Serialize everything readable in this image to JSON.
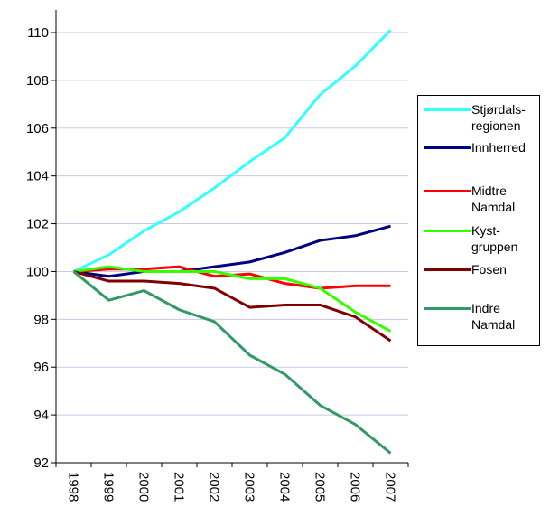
{
  "chart_data": {
    "type": "line",
    "categories": [
      "1998",
      "1999",
      "2000",
      "2001",
      "2002",
      "2003",
      "2004",
      "2005",
      "2006",
      "2007"
    ],
    "series": [
      {
        "name": "Stjørdals-regionen",
        "color": "#33ffff",
        "values": [
          100,
          100.7,
          101.7,
          102.5,
          103.5,
          104.6,
          105.6,
          107.4,
          108.6,
          110.1
        ]
      },
      {
        "name": "Innherred",
        "color": "#000080",
        "values": [
          100,
          99.8,
          100.0,
          100.0,
          100.2,
          100.4,
          100.8,
          101.3,
          101.5,
          101.9
        ]
      },
      {
        "name": "Midtre Namdal",
        "color": "#ff0000",
        "values": [
          100,
          100.1,
          100.1,
          100.2,
          99.8,
          99.9,
          99.5,
          99.3,
          99.4,
          99.4
        ]
      },
      {
        "name": "Kyst-gruppen",
        "color": "#33ff00",
        "values": [
          100,
          100.2,
          100.0,
          100.0,
          100.0,
          99.7,
          99.7,
          99.3,
          98.3,
          97.5
        ]
      },
      {
        "name": "Fosen",
        "color": "#800000",
        "values": [
          100,
          99.6,
          99.6,
          99.5,
          99.3,
          98.5,
          98.6,
          98.6,
          98.1,
          97.1
        ]
      },
      {
        "name": "Indre Namdal",
        "color": "#339966",
        "values": [
          100,
          98.8,
          99.2,
          98.4,
          97.9,
          96.5,
          95.7,
          94.4,
          93.6,
          92.4
        ]
      }
    ],
    "ylim": [
      92,
      110
    ],
    "yticks": [
      92,
      94,
      96,
      98,
      100,
      102,
      104,
      106,
      108,
      110
    ],
    "grid": true,
    "legend": "right"
  }
}
